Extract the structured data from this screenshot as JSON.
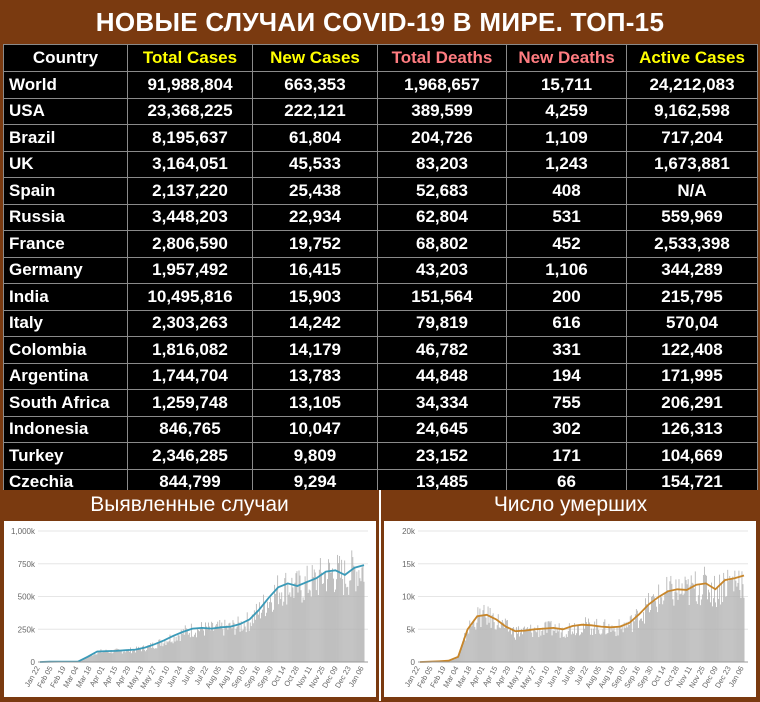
{
  "title": "НОВЫЕ СЛУЧАИ COVID-19 В МИРЕ. ТОП-15",
  "table": {
    "headers": [
      "Country",
      "Total Cases",
      "New Cases",
      "Total Deaths",
      "New Deaths",
      "Active Cases"
    ],
    "header_colors": [
      "#ffffff",
      "#ffff00",
      "#ffff00",
      "#ff7c80",
      "#ff7c80",
      "#ffff00"
    ],
    "rows": [
      [
        "World",
        "91,988,804",
        "663,353",
        "1,968,657",
        "15,711",
        "24,212,083"
      ],
      [
        "USA",
        "23,368,225",
        "222,121",
        "389,599",
        "4,259",
        "9,162,598"
      ],
      [
        "Brazil",
        "8,195,637",
        "61,804",
        "204,726",
        "1,109",
        "717,204"
      ],
      [
        "UK",
        "3,164,051",
        "45,533",
        "83,203",
        "1,243",
        "1,673,881"
      ],
      [
        "Spain",
        "2,137,220",
        "25,438",
        "52,683",
        "408",
        "N/A"
      ],
      [
        "Russia",
        "3,448,203",
        "22,934",
        "62,804",
        "531",
        "559,969"
      ],
      [
        "France",
        "2,806,590",
        "19,752",
        "68,802",
        "452",
        "2,533,398"
      ],
      [
        "Germany",
        "1,957,492",
        "16,415",
        "43,203",
        "1,106",
        "344,289"
      ],
      [
        "India",
        "10,495,816",
        "15,903",
        "151,564",
        "200",
        "215,795"
      ],
      [
        "Italy",
        "2,303,263",
        "14,242",
        "79,819",
        "616",
        "570,04"
      ],
      [
        "Colombia",
        "1,816,082",
        "14,179",
        "46,782",
        "331",
        "122,408"
      ],
      [
        "Argentina",
        "1,744,704",
        "13,783",
        "44,848",
        "194",
        "171,995"
      ],
      [
        "South Africa",
        "1,259,748",
        "13,105",
        "34,334",
        "755",
        "206,291"
      ],
      [
        "Indonesia",
        "846,765",
        "10,047",
        "24,645",
        "302",
        "126,313"
      ],
      [
        "Turkey",
        "2,346,285",
        "9,809",
        "23,152",
        "171",
        "104,669"
      ],
      [
        "Czechia",
        "844,799",
        "9,294",
        "13,485",
        "66",
        "154,721"
      ]
    ]
  },
  "chart_data": [
    {
      "type": "bar",
      "title": "Выявленные случаи",
      "xlabel": "",
      "ylabel": "",
      "ylim": [
        0,
        1000000
      ],
      "yticks": [
        "0",
        "250k",
        "500k",
        "750k",
        "1,000k"
      ],
      "xticks": [
        "Jan 22",
        "Feb 05",
        "Feb 19",
        "Mar 04",
        "Mar 18",
        "Apr 01",
        "Apr 15",
        "Apr 29",
        "May 13",
        "May 27",
        "Jun 10",
        "Jun 24",
        "Jul 08",
        "Jul 22",
        "Aug 05",
        "Aug 19",
        "Sep 02",
        "Sep 16",
        "Sep 30",
        "Oct 14",
        "Oct 28",
        "Nov 11",
        "Nov 25",
        "Dec 09",
        "Dec 23",
        "Jan 06"
      ],
      "bar_color": "#b0b0b0",
      "line_color": "#3a9ab8",
      "series": [
        {
          "values": [
            0,
            2000,
            3000,
            3000,
            4000,
            40000,
            80000,
            83000,
            85000,
            90000,
            95000,
            110000,
            135000,
            165000,
            200000,
            230000,
            255000,
            260000,
            255000,
            265000,
            270000,
            290000,
            325000,
            400000,
            490000,
            570000,
            600000,
            580000,
            610000,
            640000,
            690000,
            700000,
            665000,
            720000,
            740000
          ]
        }
      ]
    },
    {
      "type": "bar",
      "title": "Число умерших",
      "xlabel": "",
      "ylabel": "",
      "ylim": [
        0,
        20000
      ],
      "yticks": [
        "0",
        "5k",
        "10k",
        "15k",
        "20k"
      ],
      "xticks": [
        "Jan 22",
        "Feb 05",
        "Feb 19",
        "Mar 04",
        "Mar 18",
        "Apr 01",
        "Apr 15",
        "Apr 29",
        "May 13",
        "May 27",
        "Jun 10",
        "Jun 24",
        "Jul 08",
        "Jul 22",
        "Aug 05",
        "Aug 19",
        "Sep 02",
        "Sep 16",
        "Sep 30",
        "Oct 14",
        "Oct 28",
        "Nov 11",
        "Nov 25",
        "Dec 09",
        "Dec 23",
        "Jan 06"
      ],
      "bar_color": "#b0b0b0",
      "line_color": "#c8862a",
      "series": [
        {
          "values": [
            0,
            50,
            100,
            200,
            800,
            5000,
            7000,
            7200,
            6500,
            5400,
            4700,
            4800,
            5000,
            5100,
            5200,
            5000,
            5500,
            5700,
            5600,
            5400,
            5300,
            5400,
            6000,
            7300,
            8800,
            9900,
            10800,
            11100,
            11000,
            11800,
            12000,
            11100,
            12500,
            12800,
            13200
          ]
        }
      ]
    }
  ]
}
